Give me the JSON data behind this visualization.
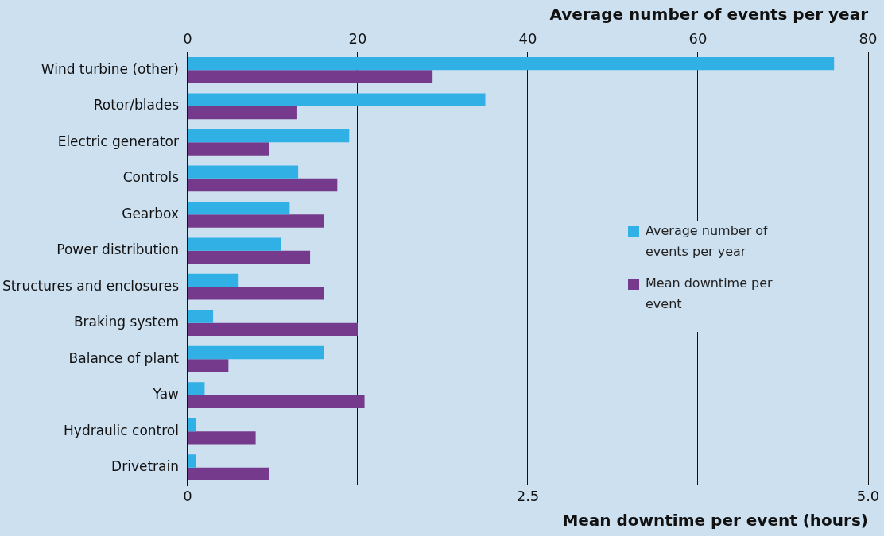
{
  "chart_data": {
    "type": "bar",
    "orientation": "horizontal",
    "categories": [
      "Wind turbine (other)",
      "Rotor/blades",
      "Electric generator",
      "Controls",
      "Gearbox",
      "Power distribution",
      "Structures and enclosures",
      "Braking system",
      "Balance of plant",
      "Yaw",
      "Hydraulic control",
      "Drivetrain"
    ],
    "series": [
      {
        "name": "Average number of events per year",
        "color": "#30b0e4",
        "axis": "x2",
        "values": [
          76,
          35,
          19,
          13,
          12,
          11,
          6,
          3,
          16,
          2,
          1,
          1
        ]
      },
      {
        "name": "Mean downtime per event",
        "color": "#763a8c",
        "values": [
          1.8,
          0.8,
          0.6,
          1.1,
          1.0,
          0.9,
          1.0,
          1.25,
          0.3,
          1.3,
          0.5,
          0.6
        ]
      }
    ],
    "xlabel": "Mean downtime per event (hours)",
    "x2label": "Average number of events per year",
    "xlim": [
      0,
      5
    ],
    "xticks": [
      0,
      {
        "value": 1.25,
        "label": null
      },
      2.5,
      {
        "value": 3.75,
        "label": null
      },
      {
        "value": 5,
        "label": "5.0"
      }
    ],
    "x2lim": [
      0,
      80
    ],
    "x2ticks": [
      0,
      20,
      40,
      60,
      80
    ],
    "grid": "x",
    "legend": "right"
  }
}
